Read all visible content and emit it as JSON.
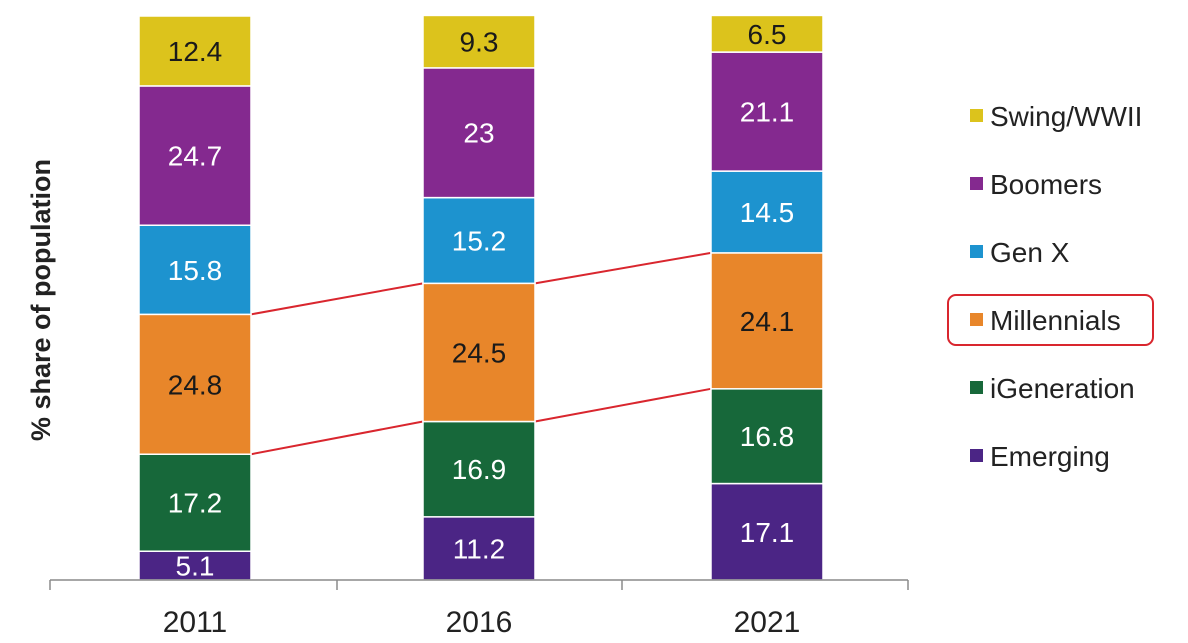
{
  "chart_data": {
    "type": "bar",
    "stacked": true,
    "categories": [
      "2011",
      "2016",
      "2021"
    ],
    "ylabel": "% share of population",
    "xlabel": "",
    "title": "",
    "ylim": [
      0,
      100
    ],
    "grid": false,
    "legend_position": "right",
    "series": [
      {
        "name": "Emerging",
        "color": "#4b2585",
        "label_color": "#ffffff",
        "values": [
          5.1,
          11.2,
          17.1
        ]
      },
      {
        "name": "iGeneration",
        "color": "#17683a",
        "label_color": "#ffffff",
        "values": [
          17.2,
          16.9,
          16.8
        ]
      },
      {
        "name": "Millennials",
        "color": "#e8862a",
        "label_color": "#1a1a1a",
        "values": [
          24.8,
          24.5,
          24.1
        ]
      },
      {
        "name": "Gen X",
        "color": "#1d93cf",
        "label_color": "#ffffff",
        "values": [
          15.8,
          15.2,
          14.5
        ]
      },
      {
        "name": "Boomers",
        "color": "#84298f",
        "label_color": "#ffffff",
        "values": [
          24.7,
          23,
          21.1
        ]
      },
      {
        "name": "Swing/WWII",
        "color": "#dcc31c",
        "label_color": "#1a1a1a",
        "values": [
          12.4,
          9.3,
          6.5
        ]
      }
    ],
    "legend_order": [
      "Swing/WWII",
      "Boomers",
      "Gen X",
      "Millennials",
      "iGeneration",
      "Emerging"
    ],
    "highlighted_series": "Millennials",
    "highlight_color": "#d9262e"
  }
}
